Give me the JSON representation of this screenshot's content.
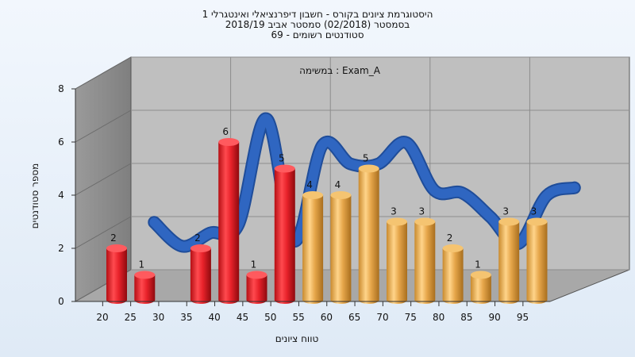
{
  "chart_data": {
    "type": "bar",
    "title_lines": [
      "היסטוגרמת ציונים בקורס - חשבון דיפרנציאלי ואינטגרלי 1",
      "בסמסטר  (02/2018)  סמסטר אביב 2018/19",
      "סטודנטים רשומים - 69"
    ],
    "subtitle": "במשימה : Exam_A",
    "xlabel": "טווח ציונים",
    "ylabel": "מספר סטודנטים",
    "ylim": [
      0,
      8
    ],
    "yticks": [
      0,
      2,
      4,
      6,
      8
    ],
    "x_ticks": [
      20,
      25,
      30,
      35,
      40,
      45,
      50,
      55,
      60,
      65,
      70,
      75,
      80,
      85,
      90,
      95
    ],
    "bars": [
      {
        "x": 20,
        "value": 2,
        "color": "red"
      },
      {
        "x": 25,
        "value": 1,
        "color": "red"
      },
      {
        "x": 35,
        "value": 2,
        "color": "red"
      },
      {
        "x": 40,
        "value": 6,
        "color": "red"
      },
      {
        "x": 45,
        "value": 1,
        "color": "red"
      },
      {
        "x": 50,
        "value": 5,
        "color": "red"
      },
      {
        "x": 55,
        "value": 4,
        "color": "orange"
      },
      {
        "x": 60,
        "value": 4,
        "color": "orange"
      },
      {
        "x": 65,
        "value": 5,
        "color": "orange"
      },
      {
        "x": 70,
        "value": 3,
        "color": "orange"
      },
      {
        "x": 75,
        "value": 3,
        "color": "orange"
      },
      {
        "x": 80,
        "value": 2,
        "color": "orange"
      },
      {
        "x": 85,
        "value": 1,
        "color": "orange"
      },
      {
        "x": 90,
        "value": 3,
        "color": "orange"
      },
      {
        "x": 95,
        "value": 3,
        "color": "orange"
      }
    ],
    "curve_points": [
      {
        "x": 25,
        "value": 2.5
      },
      {
        "x": 30,
        "value": 1.6
      },
      {
        "x": 35,
        "value": 2.1
      },
      {
        "x": 40,
        "value": 2.4
      },
      {
        "x": 45,
        "value": 6.4
      },
      {
        "x": 50,
        "value": 1.8
      },
      {
        "x": 55,
        "value": 5.4
      },
      {
        "x": 60,
        "value": 4.7
      },
      {
        "x": 65,
        "value": 4.7
      },
      {
        "x": 70,
        "value": 5.5
      },
      {
        "x": 75,
        "value": 3.7
      },
      {
        "x": 80,
        "value": 3.6
      },
      {
        "x": 85,
        "value": 2.7
      },
      {
        "x": 90,
        "value": 1.7
      },
      {
        "x": 95,
        "value": 3.5
      },
      {
        "x": 100,
        "value": 3.8
      }
    ],
    "colors": {
      "red_bar": "#e8222a",
      "orange_bar": "#e6a64a",
      "curve": "#2f66c1",
      "back_wall": "#c0c0c0",
      "side_wall": "#8a8a8a",
      "floor": "#a9a9a9"
    },
    "grid": true,
    "legend": "none"
  }
}
